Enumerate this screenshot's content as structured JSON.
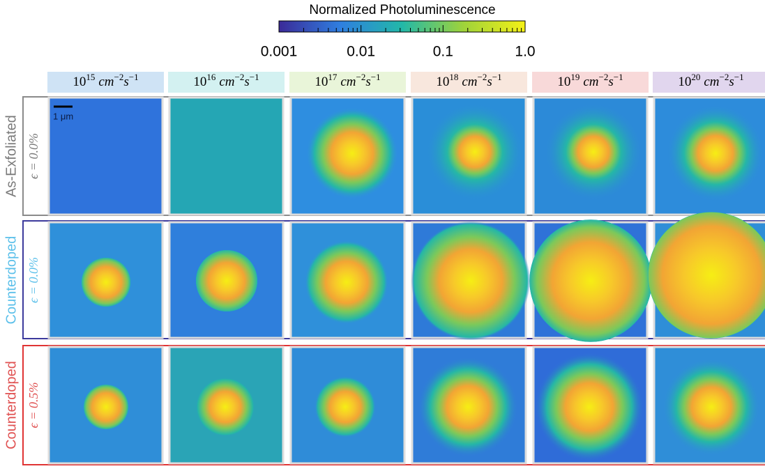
{
  "colorbar": {
    "title": "Normalized  Photoluminescence",
    "scale": "log",
    "lim": [
      0.001,
      1
    ],
    "ticks": [
      0.001,
      0.01,
      0.1,
      {
        "value": 1,
        "label": "1.0"
      }
    ],
    "colors": [
      "#3b2a98",
      "#2f7fe0",
      "#22b8a8",
      "#9fd33a",
      "#f4f016"
    ]
  },
  "columns": [
    {
      "base": "10",
      "exponent": "15"
    },
    {
      "base": "10",
      "exponent": "16"
    },
    {
      "base": "10",
      "exponent": "17"
    },
    {
      "base": "10",
      "exponent": "18"
    },
    {
      "base": "10",
      "exponent": "19"
    },
    {
      "base": "10",
      "exponent": "20"
    }
  ],
  "unit": {
    "cm": "cm",
    "cm_exponent": "−2",
    "s": "s",
    "s_exponent": "−1"
  },
  "scale_bar": "1 μm",
  "rows": [
    {
      "label": "As-Exfoliated",
      "strain": "ϵ = 0.0%"
    },
    {
      "label": "Counterdoped",
      "strain": "ϵ = 0.0%"
    },
    {
      "label": "Counterdoped",
      "strain": "ϵ = 0.5%"
    }
  ]
}
